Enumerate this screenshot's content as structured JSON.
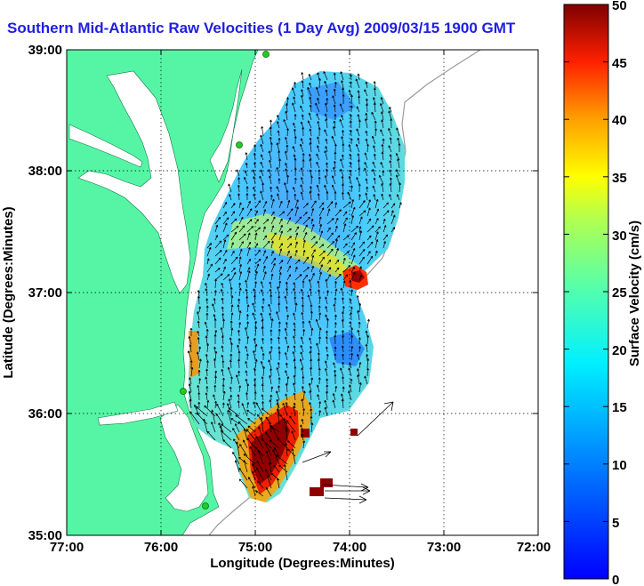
{
  "title": "Southern Mid-Atlantic Raw Velocities (1 Day Avg) 2009/03/15 1900 GMT",
  "x_axis": {
    "label": "Longitude (Degrees:Minutes)",
    "ticks": [
      "77:00",
      "76:00",
      "75:00",
      "74:00",
      "73:00",
      "72:00"
    ]
  },
  "y_axis": {
    "label": "Latitude (Degrees:Minutes)",
    "ticks": [
      "39:00",
      "38:00",
      "37:00",
      "36:00",
      "35:00"
    ]
  },
  "colorbar": {
    "label": "Surface Velocity (cm/s)",
    "ticks": [
      "50",
      "45",
      "40",
      "35",
      "30",
      "25",
      "20",
      "15",
      "10",
      "5",
      "0"
    ],
    "min": 0,
    "max": 50
  },
  "colors": {
    "land": "#55f5a5",
    "title": "#1f1fe0",
    "station": "#22cc22"
  }
}
